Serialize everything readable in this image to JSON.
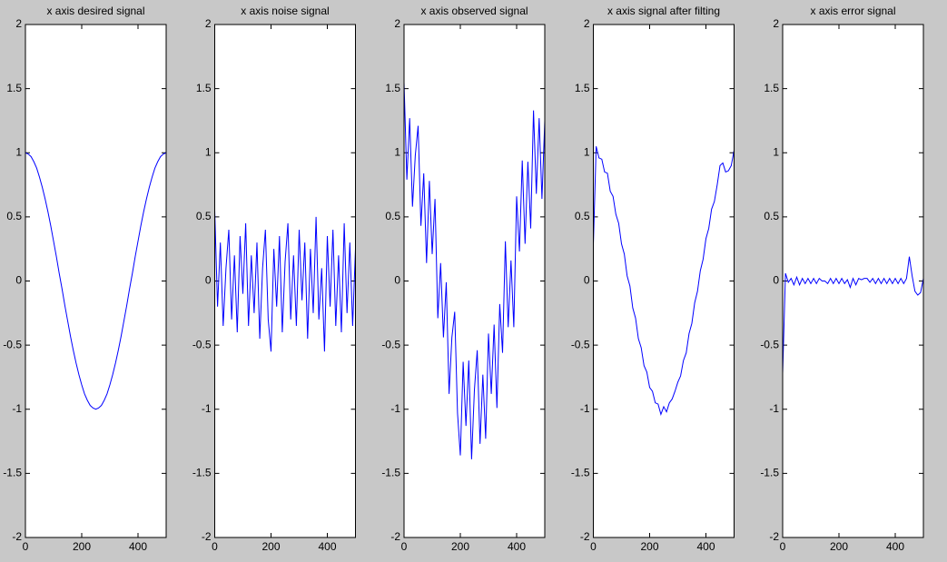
{
  "chart_data": [
    {
      "type": "line",
      "title": "x axis desired signal",
      "color": "#0000ff",
      "x": [
        0,
        10,
        20,
        30,
        40,
        50,
        60,
        70,
        80,
        90,
        100,
        110,
        120,
        130,
        140,
        150,
        160,
        170,
        180,
        190,
        200,
        210,
        220,
        230,
        240,
        250,
        260,
        270,
        280,
        290,
        300,
        310,
        320,
        330,
        340,
        350,
        360,
        370,
        380,
        390,
        400,
        410,
        420,
        430,
        440,
        450,
        460,
        470,
        480,
        490,
        500
      ],
      "values": [
        1.0,
        0.99,
        0.97,
        0.93,
        0.88,
        0.81,
        0.73,
        0.64,
        0.54,
        0.43,
        0.31,
        0.19,
        0.06,
        -0.06,
        -0.19,
        -0.31,
        -0.43,
        -0.54,
        -0.64,
        -0.73,
        -0.81,
        -0.88,
        -0.93,
        -0.97,
        -0.99,
        -1.0,
        -0.99,
        -0.97,
        -0.93,
        -0.88,
        -0.81,
        -0.73,
        -0.64,
        -0.54,
        -0.43,
        -0.31,
        -0.19,
        -0.06,
        0.06,
        0.19,
        0.31,
        0.43,
        0.54,
        0.64,
        0.73,
        0.81,
        0.88,
        0.93,
        0.97,
        0.99,
        1.0
      ],
      "xlim": [
        0,
        500
      ],
      "xticks": [
        0,
        200,
        400
      ],
      "ylim": [
        -2,
        2
      ],
      "yticks": [
        -2,
        -1.5,
        -1,
        -0.5,
        0,
        0.5,
        1,
        1.5,
        2
      ]
    },
    {
      "type": "line",
      "title": "x axis noise signal",
      "color": "#0000ff",
      "x": [
        0,
        10,
        20,
        30,
        40,
        50,
        60,
        70,
        80,
        90,
        100,
        110,
        120,
        130,
        140,
        150,
        160,
        170,
        180,
        190,
        200,
        210,
        220,
        230,
        240,
        250,
        260,
        270,
        280,
        290,
        300,
        310,
        320,
        330,
        340,
        350,
        360,
        370,
        380,
        390,
        400,
        410,
        420,
        430,
        440,
        450,
        460,
        470,
        480,
        490,
        500
      ],
      "values": [
        0.55,
        -0.2,
        0.3,
        -0.35,
        0.1,
        0.4,
        -0.3,
        0.2,
        -0.4,
        0.35,
        -0.1,
        0.45,
        -0.35,
        0.2,
        -0.25,
        0.3,
        -0.45,
        0.1,
        0.4,
        -0.3,
        -0.55,
        0.25,
        -0.2,
        0.35,
        -0.4,
        0.15,
        0.45,
        -0.3,
        0.2,
        -0.35,
        0.4,
        -0.15,
        0.3,
        -0.45,
        0.25,
        -0.25,
        0.5,
        -0.3,
        0.1,
        -0.55,
        0.35,
        -0.2,
        0.4,
        -0.35,
        0.2,
        -0.4,
        0.45,
        -0.25,
        0.3,
        -0.35,
        0.25
      ],
      "xlim": [
        0,
        500
      ],
      "xticks": [
        0,
        200,
        400
      ],
      "ylim": [
        -2,
        2
      ],
      "yticks": [
        -2,
        -1.5,
        -1,
        -0.5,
        0,
        0.5,
        1,
        1.5,
        2
      ]
    },
    {
      "type": "line",
      "title": "x axis observed signal",
      "color": "#0000ff",
      "x": [
        0,
        10,
        20,
        30,
        40,
        50,
        60,
        70,
        80,
        90,
        100,
        110,
        120,
        130,
        140,
        150,
        160,
        170,
        180,
        190,
        200,
        210,
        220,
        230,
        240,
        250,
        260,
        270,
        280,
        290,
        300,
        310,
        320,
        330,
        340,
        350,
        360,
        370,
        380,
        390,
        400,
        410,
        420,
        430,
        440,
        450,
        460,
        470,
        480,
        490,
        500
      ],
      "values": [
        1.55,
        0.79,
        1.27,
        0.58,
        0.98,
        1.21,
        0.43,
        0.84,
        0.14,
        0.78,
        0.21,
        0.64,
        -0.29,
        0.14,
        -0.44,
        -0.01,
        -0.88,
        -0.44,
        -0.24,
        -1.03,
        -1.36,
        -0.63,
        -1.13,
        -0.62,
        -1.39,
        -0.85,
        -0.54,
        -1.27,
        -0.73,
        -1.23,
        -0.41,
        -0.88,
        -0.34,
        -0.99,
        -0.18,
        -0.56,
        0.31,
        -0.36,
        0.16,
        -0.36,
        0.66,
        0.23,
        0.94,
        0.29,
        0.93,
        0.41,
        1.33,
        0.68,
        1.27,
        0.64,
        1.25
      ],
      "xlim": [
        0,
        500
      ],
      "xticks": [
        0,
        200,
        400
      ],
      "ylim": [
        -2,
        2
      ],
      "yticks": [
        -2,
        -1.5,
        -1,
        -0.5,
        0,
        0.5,
        1,
        1.5,
        2
      ]
    },
    {
      "type": "line",
      "title": "x axis signal after filting",
      "color": "#0000ff",
      "x": [
        0,
        10,
        20,
        30,
        40,
        50,
        60,
        70,
        80,
        90,
        100,
        110,
        120,
        130,
        140,
        150,
        160,
        170,
        180,
        190,
        200,
        210,
        220,
        230,
        240,
        250,
        260,
        270,
        280,
        290,
        300,
        310,
        320,
        330,
        340,
        350,
        360,
        370,
        380,
        390,
        400,
        410,
        420,
        430,
        440,
        450,
        460,
        470,
        480,
        490,
        500
      ],
      "values": [
        0.28,
        1.05,
        0.96,
        0.95,
        0.85,
        0.84,
        0.7,
        0.66,
        0.52,
        0.45,
        0.29,
        0.21,
        0.04,
        -0.04,
        -0.21,
        -0.29,
        -0.45,
        -0.52,
        -0.66,
        -0.71,
        -0.83,
        -0.86,
        -0.95,
        -0.96,
        -1.04,
        -0.98,
        -1.02,
        -0.95,
        -0.92,
        -0.86,
        -0.79,
        -0.74,
        -0.62,
        -0.56,
        -0.41,
        -0.33,
        -0.17,
        -0.08,
        0.08,
        0.17,
        0.33,
        0.41,
        0.56,
        0.62,
        0.75,
        0.9,
        0.92,
        0.85,
        0.86,
        0.9,
        1.02
      ],
      "xlim": [
        0,
        500
      ],
      "xticks": [
        0,
        200,
        400
      ],
      "ylim": [
        -2,
        2
      ],
      "yticks": [
        -2,
        -1.5,
        -1,
        -0.5,
        0,
        0.5,
        1,
        1.5,
        2
      ]
    },
    {
      "type": "line",
      "title": "x axis error signal",
      "color": "#0000ff",
      "x": [
        0,
        10,
        20,
        30,
        40,
        50,
        60,
        70,
        80,
        90,
        100,
        110,
        120,
        130,
        140,
        150,
        160,
        170,
        180,
        190,
        200,
        210,
        220,
        230,
        240,
        250,
        260,
        270,
        280,
        290,
        300,
        310,
        320,
        330,
        340,
        350,
        360,
        370,
        380,
        390,
        400,
        410,
        420,
        430,
        440,
        450,
        460,
        470,
        480,
        490,
        500
      ],
      "values": [
        -0.72,
        0.06,
        -0.01,
        0.02,
        -0.03,
        0.03,
        -0.03,
        0.02,
        -0.02,
        0.02,
        -0.02,
        0.02,
        -0.02,
        0.02,
        0,
        0,
        -0.02,
        0.02,
        -0.02,
        0.02,
        -0.02,
        0.02,
        -0.02,
        0.01,
        -0.05,
        0.02,
        -0.03,
        0.02,
        0.01,
        0.02,
        0.02,
        -0.01,
        0.02,
        -0.02,
        0.02,
        -0.02,
        0.02,
        -0.02,
        0.02,
        -0.02,
        0.02,
        -0.02,
        0.02,
        -0.02,
        0.02,
        0.19,
        0.04,
        -0.08,
        -0.11,
        -0.09,
        0.02
      ],
      "xlim": [
        0,
        500
      ],
      "xticks": [
        0,
        200,
        400
      ],
      "ylim": [
        -2,
        2
      ],
      "yticks": [
        -2,
        -1.5,
        -1,
        -0.5,
        0,
        0.5,
        1,
        1.5,
        2
      ]
    }
  ]
}
